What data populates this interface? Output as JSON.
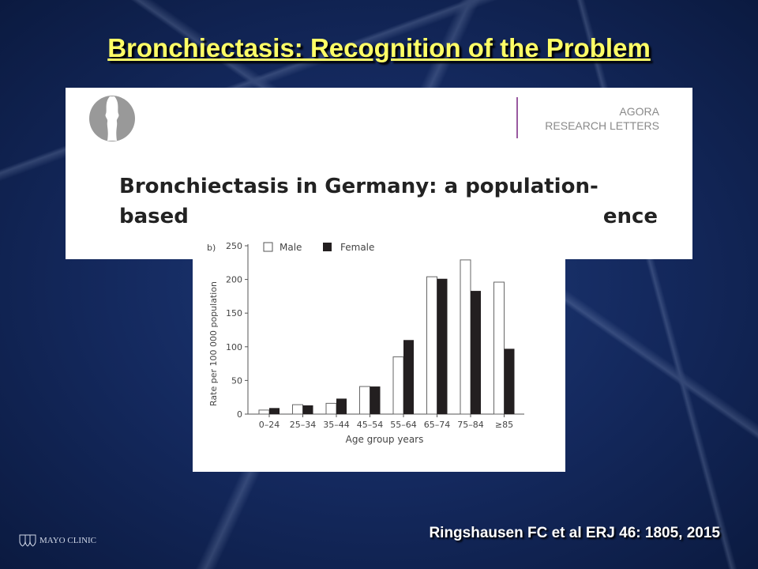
{
  "slide": {
    "title": "Bronchiectasis: Recognition of the Problem",
    "citation": "Ringshausen FC et al ERJ 46: 1805, 2015",
    "footer_logo": "MAYO CLINIC"
  },
  "paper": {
    "journal_line1": "AGORA",
    "journal_line2": "RESEARCH LETTERS",
    "title_line1": "Bronchiectasis in Germany: a population-",
    "title_line2": "based                                                          ence"
  },
  "colors": {
    "title": "#ffff66",
    "male": "#ffffff",
    "female": "#231f20",
    "background": "#14295e"
  },
  "chart_data": {
    "type": "bar",
    "panel_label": "b)",
    "categories": [
      "0–24",
      "25–34",
      "35–44",
      "45–54",
      "55–64",
      "65–74",
      "75–84",
      "≥85"
    ],
    "series": [
      {
        "name": "Male",
        "values": [
          6,
          14,
          16,
          41,
          85,
          204,
          229,
          196
        ]
      },
      {
        "name": "Female",
        "values": [
          9,
          13,
          23,
          41,
          110,
          201,
          183,
          97
        ]
      }
    ],
    "xlabel": "Age group years",
    "ylabel": "Rate per 100 000 population",
    "ylim": [
      0,
      250
    ],
    "yticks": [
      0,
      50,
      100,
      150,
      200,
      250
    ],
    "grid": false,
    "legend": "top-left"
  }
}
